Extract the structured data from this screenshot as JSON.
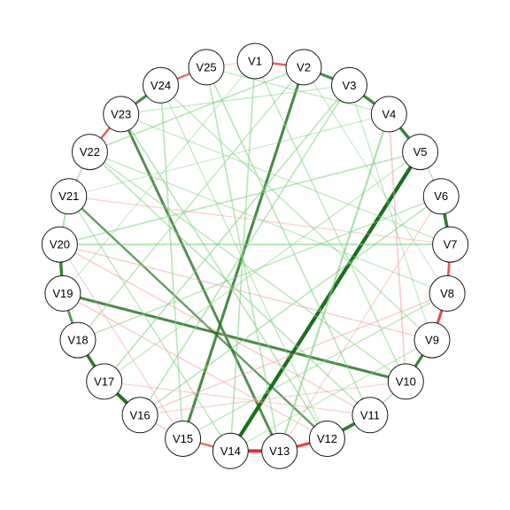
{
  "nodes": [
    "V1",
    "V2",
    "V3",
    "V4",
    "V5",
    "V6",
    "V7",
    "V8",
    "V9",
    "V10",
    "V11",
    "V12",
    "V13",
    "V14",
    "V15",
    "V16",
    "V17",
    "V18",
    "V19",
    "V20",
    "V21",
    "V22",
    "V23",
    "V24",
    "V25"
  ],
  "colors": {
    "positive": "#1b6f1b",
    "positive_light": "#7fd07f",
    "negative": "#e02020",
    "negative_light": "#f2a0a0",
    "node_fill": "#ffffff",
    "node_stroke": "#1a1a1a"
  },
  "edges": [
    {
      "from": "V1",
      "to": "V2",
      "sign": "negative",
      "weight": 0.55
    },
    {
      "from": "V2",
      "to": "V3",
      "sign": "positive",
      "weight": 0.7
    },
    {
      "from": "V3",
      "to": "V4",
      "sign": "positive",
      "weight": 0.75
    },
    {
      "from": "V4",
      "to": "V5",
      "sign": "positive",
      "weight": 0.8
    },
    {
      "from": "V5",
      "to": "V6",
      "sign": "positive",
      "weight": 0.3
    },
    {
      "from": "V6",
      "to": "V7",
      "sign": "positive",
      "weight": 0.85
    },
    {
      "from": "V7",
      "to": "V8",
      "sign": "negative",
      "weight": 0.6
    },
    {
      "from": "V8",
      "to": "V9",
      "sign": "negative",
      "weight": 0.7
    },
    {
      "from": "V9",
      "to": "V10",
      "sign": "positive",
      "weight": 0.75
    },
    {
      "from": "V10",
      "to": "V11",
      "sign": "positive",
      "weight": 0.3
    },
    {
      "from": "V11",
      "to": "V12",
      "sign": "positive",
      "weight": 0.85
    },
    {
      "from": "V12",
      "to": "V13",
      "sign": "negative",
      "weight": 0.75
    },
    {
      "from": "V13",
      "to": "V14",
      "sign": "negative",
      "weight": 0.9
    },
    {
      "from": "V14",
      "to": "V15",
      "sign": "negative",
      "weight": 0.5
    },
    {
      "from": "V15",
      "to": "V16",
      "sign": "negative",
      "weight": 0.3
    },
    {
      "from": "V16",
      "to": "V17",
      "sign": "positive",
      "weight": 0.95
    },
    {
      "from": "V17",
      "to": "V18",
      "sign": "positive",
      "weight": 0.85
    },
    {
      "from": "V18",
      "to": "V19",
      "sign": "positive",
      "weight": 0.6
    },
    {
      "from": "V19",
      "to": "V20",
      "sign": "positive",
      "weight": 0.8
    },
    {
      "from": "V20",
      "to": "V21",
      "sign": "positive",
      "weight": 0.4
    },
    {
      "from": "V21",
      "to": "V22",
      "sign": "positive",
      "weight": 0.3
    },
    {
      "from": "V22",
      "to": "V23",
      "sign": "negative",
      "weight": 0.55
    },
    {
      "from": "V23",
      "to": "V24",
      "sign": "positive",
      "weight": 0.7
    },
    {
      "from": "V24",
      "to": "V25",
      "sign": "negative",
      "weight": 0.5
    },
    {
      "from": "V25",
      "to": "V1",
      "sign": "negative",
      "weight": 0.2
    },
    {
      "from": "V5",
      "to": "V14",
      "sign": "positive",
      "weight": 1.0
    },
    {
      "from": "V2",
      "to": "V15",
      "sign": "positive",
      "weight": 0.7
    },
    {
      "from": "V19",
      "to": "V10",
      "sign": "positive",
      "weight": 0.7
    },
    {
      "from": "V23",
      "to": "V13",
      "sign": "positive",
      "weight": 0.65
    },
    {
      "from": "V21",
      "to": "V12",
      "sign": "positive",
      "weight": 0.5
    },
    {
      "from": "V4",
      "to": "V13",
      "sign": "positive",
      "weight": 0.45
    },
    {
      "from": "V5",
      "to": "V20",
      "sign": "positive",
      "weight": 0.3
    },
    {
      "from": "V7",
      "to": "V20",
      "sign": "positive",
      "weight": 0.35
    },
    {
      "from": "V3",
      "to": "V16",
      "sign": "positive",
      "weight": 0.3
    },
    {
      "from": "V1",
      "to": "V10",
      "sign": "positive",
      "weight": 0.25
    },
    {
      "from": "V2",
      "to": "V22",
      "sign": "positive",
      "weight": 0.3
    },
    {
      "from": "V4",
      "to": "V10",
      "sign": "negative",
      "weight": 0.3
    },
    {
      "from": "V6",
      "to": "V16",
      "sign": "positive",
      "weight": 0.3
    },
    {
      "from": "V8",
      "to": "V15",
      "sign": "positive",
      "weight": 0.25
    },
    {
      "from": "V9",
      "to": "V20",
      "sign": "negative",
      "weight": 0.25
    },
    {
      "from": "V11",
      "to": "V22",
      "sign": "positive",
      "weight": 0.3
    },
    {
      "from": "V12",
      "to": "V23",
      "sign": "positive",
      "weight": 0.3
    },
    {
      "from": "V18",
      "to": "V6",
      "sign": "positive",
      "weight": 0.25
    },
    {
      "from": "V17",
      "to": "V3",
      "sign": "positive",
      "weight": 0.3
    },
    {
      "from": "V25",
      "to": "V11",
      "sign": "positive",
      "weight": 0.3
    },
    {
      "from": "V24",
      "to": "V9",
      "sign": "positive",
      "weight": 0.25
    },
    {
      "from": "V21",
      "to": "V7",
      "sign": "negative",
      "weight": 0.2
    },
    {
      "from": "V1",
      "to": "V14",
      "sign": "positive",
      "weight": 0.3
    },
    {
      "from": "V16",
      "to": "V8",
      "sign": "negative",
      "weight": 0.25
    },
    {
      "from": "V22",
      "to": "V10",
      "sign": "positive",
      "weight": 0.25
    },
    {
      "from": "V20",
      "to": "V11",
      "sign": "negative",
      "weight": 0.25
    },
    {
      "from": "V15",
      "to": "V24",
      "sign": "positive",
      "weight": 0.3
    },
    {
      "from": "V13",
      "to": "V25",
      "sign": "positive",
      "weight": 0.3
    },
    {
      "from": "V14",
      "to": "V21",
      "sign": "positive",
      "weight": 0.25
    },
    {
      "from": "V12",
      "to": "V19",
      "sign": "negative",
      "weight": 0.25
    },
    {
      "from": "V3",
      "to": "V9",
      "sign": "positive",
      "weight": 0.2
    },
    {
      "from": "V6",
      "to": "V13",
      "sign": "negative",
      "weight": 0.2
    },
    {
      "from": "V18",
      "to": "V2",
      "sign": "positive",
      "weight": 0.25
    },
    {
      "from": "V23",
      "to": "V7",
      "sign": "positive",
      "weight": 0.2
    },
    {
      "from": "V17",
      "to": "V11",
      "sign": "negative",
      "weight": 0.2
    },
    {
      "from": "V5",
      "to": "V17",
      "sign": "positive",
      "weight": 0.2
    },
    {
      "from": "V8",
      "to": "V22",
      "sign": "positive",
      "weight": 0.2
    },
    {
      "from": "V1",
      "to": "V19",
      "sign": "positive",
      "weight": 0.15
    },
    {
      "from": "V4",
      "to": "V25",
      "sign": "positive",
      "weight": 0.2
    },
    {
      "from": "V10",
      "to": "V16",
      "sign": "negative",
      "weight": 0.2
    },
    {
      "from": "V9",
      "to": "V14",
      "sign": "positive",
      "weight": 0.2
    },
    {
      "from": "V24",
      "to": "V12",
      "sign": "positive",
      "weight": 0.2
    },
    {
      "from": "V2",
      "to": "V8",
      "sign": "positive",
      "weight": 0.15
    },
    {
      "from": "V20",
      "to": "V15",
      "sign": "negative",
      "weight": 0.2
    },
    {
      "from": "V21",
      "to": "V4",
      "sign": "positive",
      "weight": 0.15
    },
    {
      "from": "V3",
      "to": "V23",
      "sign": "positive",
      "weight": 0.2
    }
  ]
}
